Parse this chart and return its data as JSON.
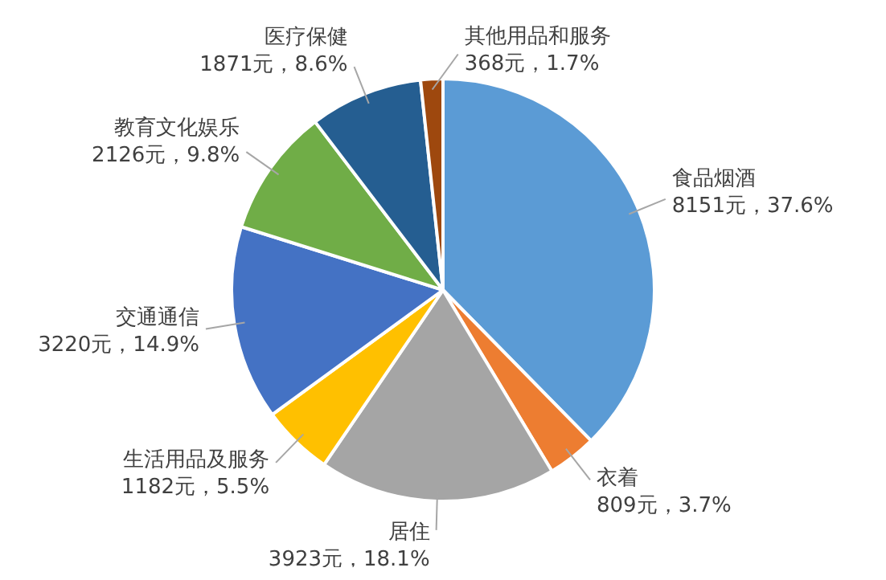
{
  "chart_data": {
    "type": "pie",
    "categories": [
      "食品烟酒",
      "衣着",
      "居住",
      "生活用品及服务",
      "交通通信",
      "教育文化娱乐",
      "医疗保健",
      "其他用品和服务"
    ],
    "values": [
      8151,
      809,
      3923,
      1182,
      3220,
      2126,
      1871,
      368
    ],
    "value_labels": [
      "8151元，37.6%",
      "809元，3.7%",
      "3923元，18.1%",
      "1182元，5.5%",
      "3220元，14.9%",
      "2126元，9.8%",
      "1871元，8.6%",
      "368元，1.7%"
    ],
    "colors": [
      "#5b9bd5",
      "#ed7d31",
      "#a5a5a5",
      "#ffc000",
      "#4472c4",
      "#70ad47",
      "#255e91",
      "#9e480e"
    ],
    "legend": false
  }
}
